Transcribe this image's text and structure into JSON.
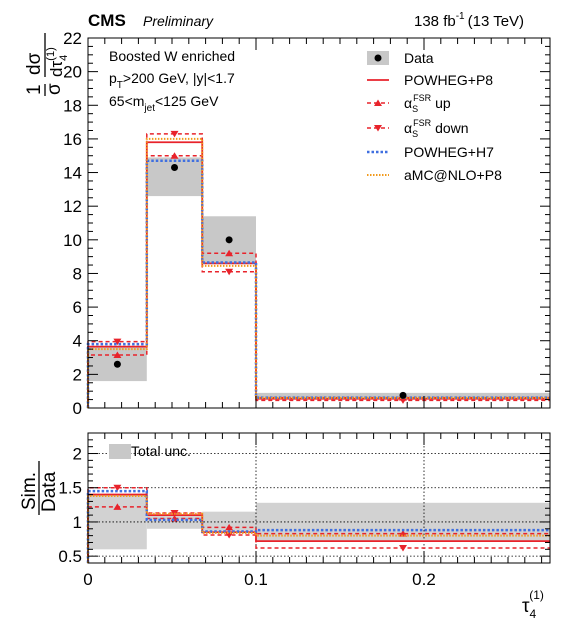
{
  "header": {
    "experiment": "CMS",
    "status": "Preliminary",
    "lumi_value": "138 fb",
    "lumi_exp": "-1",
    "energy": "(13 TeV)"
  },
  "selection": {
    "line1": "Boosted W enriched",
    "line2_pre": "p",
    "line2_sub": "T",
    "line2_post": ">200 GeV, |y|<1.7",
    "line3_pre": "65<m",
    "line3_sub": "jet",
    "line3_post": "<125 GeV"
  },
  "legend": {
    "data": "Data",
    "powheg_p8": "POWHEG+P8",
    "alpha_sym": "α",
    "alpha_sub": "S",
    "alpha_sup": "FSR",
    "fsr_up_suffix": "up",
    "fsr_down_suffix": "down",
    "powheg_h7": "POWHEG+H7",
    "amc": "aMC@NLO+P8",
    "total_unc": "Total unc."
  },
  "axes": {
    "ylabel_one": "1",
    "ylabel_sigma": "σ",
    "ylabel_dsigma": "dσ",
    "ylabel_dtau": "dτ",
    "ylabel_tau_sub": "4",
    "ylabel_tau_sup": "(1)",
    "ratio_ylabel_num": "Sim.",
    "ratio_ylabel_den": "Data",
    "xlabel_tau": "τ",
    "xlabel_sub": "4",
    "xlabel_sup": "(1)"
  },
  "chart_data": [
    {
      "type": "histogram",
      "panel": "main",
      "bin_edges": [
        0,
        0.035,
        0.068,
        0.1,
        0.275
      ],
      "xlim": [
        0,
        0.275
      ],
      "ylim": [
        0,
        22
      ],
      "yticks": [
        0,
        2,
        4,
        6,
        8,
        10,
        12,
        14,
        16,
        18,
        20,
        22
      ],
      "xticks": [
        0,
        0.1,
        0.2
      ],
      "data": {
        "name": "Data",
        "values": [
          2.6,
          14.3,
          10.0,
          0.75
        ],
        "unc_low": [
          1.6,
          12.6,
          8.6,
          0.6
        ],
        "unc_high": [
          3.6,
          14.9,
          11.4,
          0.9
        ]
      },
      "series": [
        {
          "name": "POWHEG+P8",
          "color": "#e8232b",
          "style": "solid",
          "values": [
            3.65,
            15.8,
            8.6,
            0.55
          ]
        },
        {
          "name": "α_S^FSR up",
          "color": "#e8232b",
          "style": "dashed",
          "marker": "triangle-up",
          "values": [
            3.15,
            15.0,
            9.2,
            0.62
          ]
        },
        {
          "name": "α_S^FSR down",
          "color": "#e8232b",
          "style": "dashed",
          "marker": "triangle-down",
          "values": [
            3.95,
            16.3,
            8.1,
            0.45
          ]
        },
        {
          "name": "POWHEG+H7",
          "color": "#3f6fe0",
          "style": "dotted",
          "values": [
            3.8,
            14.7,
            8.65,
            0.62
          ]
        },
        {
          "name": "aMC@NLO+P8",
          "color": "#f29a1b",
          "style": "dotted",
          "values": [
            3.5,
            16.0,
            8.45,
            0.6
          ]
        }
      ]
    },
    {
      "type": "histogram",
      "panel": "ratio",
      "bin_edges": [
        0,
        0.035,
        0.068,
        0.1,
        0.275
      ],
      "xlim": [
        0,
        0.275
      ],
      "ylim": [
        0.4,
        2.3
      ],
      "yticks": [
        0.5,
        1,
        1.5,
        2
      ],
      "xticks": [
        0,
        0.1,
        0.2
      ],
      "total_unc": {
        "name": "Total unc.",
        "low": [
          0.6,
          0.9,
          0.87,
          0.72
        ],
        "high": [
          1.4,
          1.1,
          1.15,
          1.28
        ]
      },
      "series": [
        {
          "name": "POWHEG+P8",
          "color": "#e8232b",
          "style": "solid",
          "values": [
            1.4,
            1.1,
            0.85,
            0.72
          ]
        },
        {
          "name": "α_S^FSR up",
          "color": "#e8232b",
          "style": "dashed",
          "marker": "triangle-up",
          "values": [
            1.22,
            1.05,
            0.92,
            0.83
          ]
        },
        {
          "name": "α_S^FSR down",
          "color": "#e8232b",
          "style": "dashed",
          "marker": "triangle-down",
          "values": [
            1.5,
            1.13,
            0.81,
            0.62
          ]
        },
        {
          "name": "POWHEG+H7",
          "color": "#3f6fe0",
          "style": "dotted",
          "values": [
            1.45,
            1.03,
            0.86,
            0.88
          ]
        },
        {
          "name": "aMC@NLO+P8",
          "color": "#f29a1b",
          "style": "dotted",
          "values": [
            1.38,
            1.12,
            0.84,
            0.8
          ]
        }
      ]
    }
  ]
}
